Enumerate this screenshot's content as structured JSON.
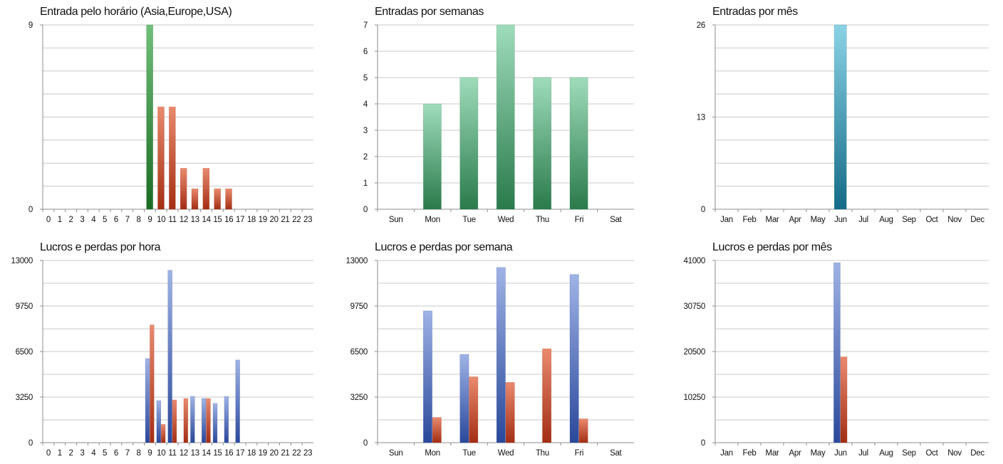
{
  "colors": {
    "green": [
      "#9fdcbc",
      "#2a7a4b"
    ],
    "green_dark": [
      "#6fc07a",
      "#1c6b23"
    ],
    "red": [
      "#e98a6e",
      "#a32e14"
    ],
    "teal": [
      "#8ad3e6",
      "#146b87"
    ],
    "blue": [
      "#9fb3e6",
      "#2a489a"
    ]
  },
  "chart_data": [
    {
      "type": "bar",
      "title": "Entrada pelo horário (Asia,Europe,USA)",
      "categories": [
        "0",
        "1",
        "2",
        "3",
        "4",
        "5",
        "6",
        "7",
        "8",
        "9",
        "10",
        "11",
        "12",
        "13",
        "14",
        "15",
        "16",
        "17",
        "18",
        "19",
        "20",
        "21",
        "22",
        "23"
      ],
      "series": [
        {
          "values": [
            0,
            0,
            0,
            0,
            0,
            0,
            0,
            0,
            0,
            9,
            5,
            5,
            2,
            1,
            2,
            1,
            1,
            0,
            0,
            0,
            0,
            0,
            0,
            0
          ]
        }
      ],
      "bar_colors": [
        "red",
        "red",
        "red",
        "red",
        "red",
        "red",
        "red",
        "red",
        "red",
        "green_dark",
        "red",
        "red",
        "red",
        "red",
        "red",
        "red",
        "red",
        "red",
        "red",
        "red",
        "red",
        "red",
        "red",
        "red"
      ],
      "ylim": [
        0,
        9
      ],
      "yticks": [
        "0",
        "9"
      ],
      "gridlines": 8,
      "bar_frac": 0.6,
      "grid": true
    },
    {
      "type": "bar",
      "title": "Entradas por semanas",
      "categories": [
        "Sun",
        "Mon",
        "Tue",
        "Wed",
        "Thu",
        "Fri",
        "Sat"
      ],
      "series": [
        {
          "values": [
            0,
            4,
            5,
            7,
            5,
            5,
            0
          ]
        }
      ],
      "color": "green",
      "ylim": [
        0,
        7
      ],
      "yticks": [
        "0",
        "1",
        "2",
        "3",
        "4",
        "5",
        "6",
        "7"
      ],
      "gridlines": 7,
      "bar_frac": 0.5,
      "grid": true
    },
    {
      "type": "bar",
      "title": "Entradas por mês",
      "categories": [
        "Jan",
        "Feb",
        "Mar",
        "Apr",
        "May",
        "Jun",
        "Jul",
        "Aug",
        "Sep",
        "Oct",
        "Nov",
        "Dec"
      ],
      "series": [
        {
          "values": [
            0,
            0,
            0,
            0,
            0,
            26,
            0,
            0,
            0,
            0,
            0,
            0
          ]
        }
      ],
      "color": "teal",
      "ylim": [
        0,
        26
      ],
      "yticks": [
        "0",
        "13",
        "26"
      ],
      "gridlines": 8,
      "bar_frac": 0.55,
      "grid": true
    },
    {
      "type": "bar",
      "title": "Lucros e perdas por hora",
      "categories": [
        "0",
        "1",
        "2",
        "3",
        "4",
        "5",
        "6",
        "7",
        "8",
        "9",
        "10",
        "11",
        "12",
        "13",
        "14",
        "15",
        "16",
        "17",
        "18",
        "19",
        "20",
        "21",
        "22",
        "23"
      ],
      "series": [
        {
          "values": [
            0,
            0,
            0,
            0,
            0,
            0,
            0,
            0,
            0,
            6000,
            3000,
            12300,
            0,
            3300,
            3150,
            2800,
            3300,
            5900,
            0,
            0,
            0,
            0,
            0,
            0
          ],
          "color": "blue"
        },
        {
          "values": [
            0,
            0,
            0,
            0,
            0,
            0,
            0,
            0,
            0,
            8400,
            1300,
            3050,
            3150,
            0,
            3150,
            0,
            0,
            0,
            0,
            0,
            0,
            0,
            0,
            0
          ],
          "color": "red"
        }
      ],
      "ylim": [
        0,
        13000
      ],
      "yticks": [
        "0",
        "3250",
        "6500",
        "9750",
        "13000"
      ],
      "gridlines": 8,
      "bar_frac": 0.8,
      "grid": true
    },
    {
      "type": "bar",
      "title": "Lucros e perdas por semana",
      "categories": [
        "Sun",
        "Mon",
        "Tue",
        "Wed",
        "Thu",
        "Fri",
        "Sat"
      ],
      "series": [
        {
          "values": [
            0,
            9400,
            6300,
            12500,
            0,
            12000,
            0
          ],
          "color": "blue"
        },
        {
          "values": [
            0,
            1800,
            4700,
            4300,
            6700,
            1700,
            0
          ],
          "color": "red"
        }
      ],
      "ylim": [
        0,
        13000
      ],
      "yticks": [
        "0",
        "3250",
        "6500",
        "9750",
        "13000"
      ],
      "gridlines": 8,
      "bar_frac": 0.5,
      "grid": true
    },
    {
      "type": "bar",
      "title": "Lucros e perdas por mês",
      "categories": [
        "Jan",
        "Feb",
        "Mar",
        "Apr",
        "May",
        "Jun",
        "Jul",
        "Aug",
        "Sep",
        "Oct",
        "Nov",
        "Dec"
      ],
      "series": [
        {
          "values": [
            0,
            0,
            0,
            0,
            0,
            40500,
            0,
            0,
            0,
            0,
            0,
            0
          ],
          "color": "blue"
        },
        {
          "values": [
            0,
            0,
            0,
            0,
            0,
            19300,
            0,
            0,
            0,
            0,
            0,
            0
          ],
          "color": "red"
        }
      ],
      "ylim": [
        0,
        41000
      ],
      "yticks": [
        "0",
        "10250",
        "20500",
        "30750",
        "41000"
      ],
      "gridlines": 8,
      "bar_frac": 0.6,
      "grid": true
    }
  ]
}
